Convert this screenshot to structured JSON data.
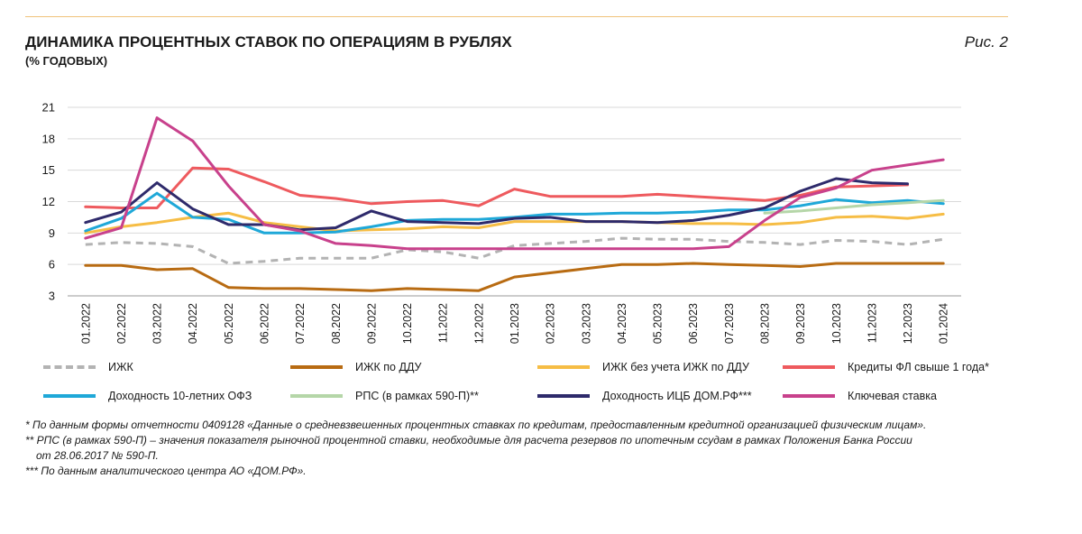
{
  "header": {
    "title": "ДИНАМИКА ПРОЦЕНТНЫХ СТАВОК ПО ОПЕРАЦИЯМ В РУБЛЯХ",
    "subtitle": "(% ГОДОВЫХ)",
    "figure_label": "Рис. 2"
  },
  "chart_data": {
    "type": "line",
    "title": "ДИНАМИКА ПРОЦЕНТНЫХ СТАВОК ПО ОПЕРАЦИЯМ В РУБЛЯХ",
    "ylabel": "(% ГОДОВЫХ)",
    "ylim": [
      3,
      21
    ],
    "yticks": [
      3,
      6,
      9,
      12,
      15,
      18,
      21
    ],
    "grid": "horizontal",
    "legend_position": "bottom",
    "categories": [
      "01.2022",
      "02.2022",
      "03.2022",
      "04.2022",
      "05.2022",
      "06.2022",
      "07.2022",
      "08.2022",
      "09.2022",
      "10.2022",
      "11.2022",
      "12.2022",
      "01.2023",
      "02.2023",
      "03.2023",
      "04.2023",
      "05.2023",
      "06.2023",
      "07.2023",
      "08.2023",
      "09.2023",
      "10.2023",
      "11.2023",
      "12.2023",
      "01.2024"
    ],
    "series": [
      {
        "name": "ИЖК",
        "color": "#b3b3b3",
        "dash": "dashed",
        "values": [
          7.9,
          8.1,
          8.0,
          7.7,
          6.1,
          6.3,
          6.6,
          6.6,
          6.6,
          7.4,
          7.2,
          6.6,
          7.8,
          8.0,
          8.2,
          8.5,
          8.4,
          8.4,
          8.2,
          8.1,
          7.9,
          8.3,
          8.2,
          7.9,
          8.4
        ]
      },
      {
        "name": "ИЖК по ДДУ",
        "color": "#b86b12",
        "dash": "solid",
        "values": [
          5.9,
          5.9,
          5.5,
          5.6,
          3.8,
          3.7,
          3.7,
          3.6,
          3.5,
          3.7,
          3.6,
          3.5,
          4.8,
          5.2,
          5.6,
          6.0,
          6.0,
          6.1,
          6.0,
          5.9,
          5.8,
          6.1,
          6.1,
          6.1,
          6.1
        ]
      },
      {
        "name": "ИЖК без учета ИЖК по ДДУ",
        "color": "#f6bd45",
        "dash": "solid",
        "values": [
          9.0,
          9.6,
          10.0,
          10.5,
          10.9,
          10.0,
          9.6,
          9.2,
          9.3,
          9.4,
          9.6,
          9.5,
          10.1,
          10.1,
          10.1,
          10.1,
          10.0,
          9.9,
          9.9,
          9.8,
          10.0,
          10.5,
          10.6,
          10.4,
          10.8
        ]
      },
      {
        "name": "Кредиты ФЛ свыше 1 года*",
        "color": "#ee5a5e",
        "dash": "solid",
        "values": [
          11.5,
          11.4,
          11.4,
          15.2,
          15.1,
          13.9,
          12.6,
          12.3,
          11.8,
          12.0,
          12.1,
          11.6,
          13.2,
          12.5,
          12.5,
          12.5,
          12.7,
          12.5,
          12.3,
          12.1,
          12.6,
          13.4,
          13.5,
          13.6,
          null
        ]
      },
      {
        "name": "Доходность 10-летних ОФЗ",
        "color": "#1fa8d8",
        "dash": "solid",
        "values": [
          9.2,
          10.4,
          12.8,
          10.5,
          10.3,
          9.0,
          9.0,
          9.1,
          9.6,
          10.2,
          10.3,
          10.3,
          10.5,
          10.8,
          10.8,
          10.9,
          10.9,
          11.0,
          11.2,
          11.2,
          11.6,
          12.2,
          11.9,
          12.1,
          11.8
        ]
      },
      {
        "name": "РПС (в рамках 590-П)**",
        "color": "#b5d6a8",
        "dash": "solid",
        "values": [
          null,
          null,
          null,
          null,
          null,
          null,
          null,
          null,
          null,
          null,
          null,
          null,
          null,
          null,
          null,
          null,
          null,
          null,
          null,
          10.9,
          11.1,
          11.4,
          11.7,
          11.9,
          12.1
        ]
      },
      {
        "name": "Доходность ИЦБ ДОМ.РФ***",
        "color": "#2e2a6b",
        "dash": "solid",
        "values": [
          10.0,
          11.0,
          13.8,
          11.3,
          9.8,
          9.8,
          9.3,
          9.5,
          11.1,
          10.1,
          10.0,
          9.9,
          10.4,
          10.5,
          10.1,
          10.1,
          10.0,
          10.2,
          10.7,
          11.4,
          13.0,
          14.2,
          13.8,
          13.7,
          null
        ]
      },
      {
        "name": "Ключевая ставка",
        "color": "#c8418c",
        "dash": "solid",
        "values": [
          8.5,
          9.5,
          20.0,
          17.8,
          13.5,
          9.8,
          9.2,
          8.0,
          7.8,
          7.5,
          7.5,
          7.5,
          7.5,
          7.5,
          7.5,
          7.5,
          7.5,
          7.5,
          7.7,
          10.2,
          12.4,
          13.3,
          15.0,
          15.5,
          16.0
        ]
      }
    ]
  },
  "notes": [
    "* По данным формы отчетности 0409128 «Данные о средневзвешенных процентных ставках по кредитам, предоставленным кредитной организацией физическим лицам».",
    "** РПС (в рамках 590-П) – значения показателя рыночной процентной ставки, необходимые для расчета резервов по ипотечным ссудам в рамках Положения Банка России",
    "от 28.06.2017 № 590-П.",
    "*** По данным аналитического центра АО «ДОМ.РФ»."
  ]
}
